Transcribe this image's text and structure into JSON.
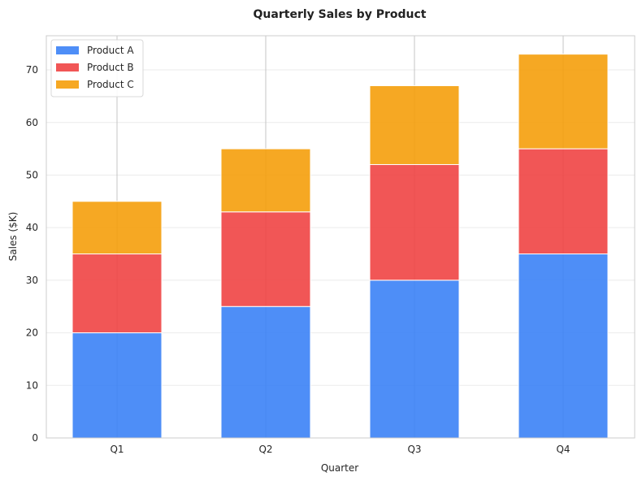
{
  "chart_data": {
    "type": "bar",
    "stacked": true,
    "title": "Quarterly Sales by Product",
    "xlabel": "Quarter",
    "ylabel": "Sales ($K)",
    "categories": [
      "Q1",
      "Q2",
      "Q3",
      "Q4"
    ],
    "series": [
      {
        "name": "Product A",
        "values": [
          20,
          25,
          30,
          35
        ],
        "color": "#3b82f6"
      },
      {
        "name": "Product B",
        "values": [
          15,
          18,
          22,
          20
        ],
        "color": "#ef4444"
      },
      {
        "name": "Product C",
        "values": [
          10,
          12,
          15,
          18
        ],
        "color": "#f59e0b"
      }
    ],
    "ylim": [
      0,
      76.5
    ],
    "yticks": [
      0,
      10,
      20,
      30,
      40,
      50,
      60,
      70
    ],
    "grid": true,
    "legend_position": "top-left"
  }
}
